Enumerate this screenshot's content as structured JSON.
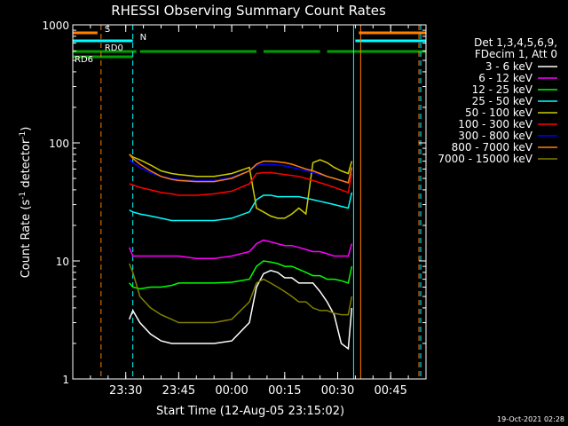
{
  "chart_data": {
    "type": "line",
    "title": "RHESSI Observing Summary Count Rates",
    "xlabel": "Start Time (12-Aug-05 23:15:02)",
    "ylabel_main": "Count Rate (s",
    "ylabel_sup1": "-1",
    "ylabel_mid": " detector",
    "ylabel_sup2": "-1",
    "ylabel_end": ")",
    "y_scale": "log",
    "ylim": [
      1,
      1000
    ],
    "xlim": [
      0,
      100
    ],
    "y_ticks": [
      {
        "label": "1",
        "v": 1
      },
      {
        "label": "10",
        "v": 10
      },
      {
        "label": "100",
        "v": 100
      },
      {
        "label": "1000",
        "v": 1000
      }
    ],
    "x_ticks": [
      {
        "label": "23:30",
        "x": 15
      },
      {
        "label": "23:45",
        "x": 30
      },
      {
        "label": "00:00",
        "x": 45
      },
      {
        "label": "00:15",
        "x": 60
      },
      {
        "label": "00:30",
        "x": 75
      },
      {
        "label": "00:45",
        "x": 90
      }
    ],
    "legend_header": [
      "Det 1,3,4,5,6,9,",
      "FDecim 1, Att 0"
    ],
    "legend_position": "right",
    "series": [
      {
        "name": "3 - 6 keV",
        "color": "#ffffff",
        "x": [
          16,
          17,
          19,
          22,
          25,
          28,
          30,
          35,
          40,
          45,
          50,
          52,
          54,
          56,
          58,
          60,
          62,
          64,
          66,
          68,
          70,
          72,
          74,
          76,
          78,
          79
        ],
        "y": [
          3.2,
          3.8,
          3.0,
          2.4,
          2.1,
          2.0,
          2.0,
          2.0,
          2.0,
          2.1,
          3.0,
          6.0,
          7.8,
          8.3,
          8.0,
          7.2,
          7.2,
          6.5,
          6.5,
          6.5,
          5.5,
          4.5,
          3.5,
          2.0,
          1.8,
          4.0
        ]
      },
      {
        "name": "6 - 12 keV",
        "color": "#ff00ff",
        "x": [
          16,
          17,
          19,
          22,
          25,
          28,
          30,
          35,
          40,
          45,
          50,
          52,
          54,
          56,
          58,
          60,
          62,
          64,
          66,
          68,
          70,
          72,
          74,
          76,
          78,
          79
        ],
        "y": [
          13,
          11,
          11,
          11,
          11,
          11,
          11,
          10.5,
          10.5,
          11,
          12,
          14,
          15,
          14.5,
          14,
          13.5,
          13.5,
          13,
          12.5,
          12,
          12,
          11.5,
          11,
          11,
          11,
          14
        ]
      },
      {
        "name": "12 - 25 keV",
        "color": "#00ff00",
        "x": [
          16,
          17,
          19,
          22,
          25,
          28,
          30,
          35,
          40,
          45,
          50,
          52,
          54,
          56,
          58,
          60,
          62,
          64,
          66,
          68,
          70,
          72,
          74,
          76,
          78,
          79
        ],
        "y": [
          6.5,
          6.0,
          5.8,
          6.0,
          6.0,
          6.2,
          6.5,
          6.5,
          6.5,
          6.6,
          7.0,
          9,
          10,
          9.8,
          9.5,
          9,
          9,
          8.5,
          8,
          7.5,
          7.5,
          7.0,
          7.0,
          6.8,
          6.5,
          9
        ]
      },
      {
        "name": "25 - 50 keV",
        "color": "#00ffff",
        "x": [
          16,
          17,
          19,
          22,
          25,
          28,
          30,
          35,
          40,
          45,
          50,
          52,
          54,
          56,
          58,
          60,
          62,
          64,
          66,
          68,
          70,
          72,
          74,
          76,
          78,
          79
        ],
        "y": [
          27,
          26,
          25,
          24,
          23,
          22,
          22,
          22,
          22,
          23,
          26,
          33,
          36,
          36,
          35,
          35,
          35,
          35,
          34,
          33,
          32,
          31,
          30,
          29,
          28,
          38
        ]
      },
      {
        "name": "50 - 100 keV",
        "color": "#cccc00",
        "x": [
          16,
          17,
          19,
          22,
          25,
          28,
          30,
          35,
          40,
          45,
          50,
          52,
          54,
          56,
          58,
          60,
          62,
          64,
          66,
          68,
          70,
          72,
          74,
          76,
          78,
          79
        ],
        "y": [
          80,
          76,
          72,
          65,
          58,
          55,
          54,
          52,
          52,
          55,
          62,
          28,
          26,
          24,
          23,
          23,
          25,
          28,
          25,
          68,
          72,
          68,
          62,
          58,
          55,
          70
        ]
      },
      {
        "name": "100 - 300 keV",
        "color": "#ff0000",
        "x": [
          16,
          17,
          19,
          22,
          25,
          28,
          30,
          35,
          40,
          45,
          50,
          52,
          54,
          56,
          58,
          60,
          62,
          64,
          66,
          68,
          70,
          72,
          74,
          76,
          78,
          79
        ],
        "y": [
          45,
          44,
          42,
          40,
          38,
          37,
          36,
          36,
          37,
          39,
          45,
          55,
          56,
          56,
          55,
          54,
          53,
          52,
          50,
          48,
          46,
          44,
          42,
          40,
          38,
          55
        ]
      },
      {
        "name": "300 - 800 keV",
        "color": "#0000ff",
        "x": [
          16,
          17,
          19,
          22,
          25,
          28,
          30,
          35,
          40,
          45,
          50,
          52,
          54,
          56,
          58,
          60,
          62,
          64,
          66,
          68,
          70,
          72,
          74,
          76,
          78,
          79
        ],
        "y": [
          72,
          68,
          62,
          56,
          52,
          50,
          49,
          48,
          48,
          51,
          58,
          64,
          66,
          66,
          65,
          64,
          62,
          60,
          58,
          56,
          54,
          52,
          50,
          48,
          46,
          60
        ]
      },
      {
        "name": "800 - 7000 keV",
        "color": "#ff8000",
        "x": [
          16,
          17,
          19,
          22,
          25,
          28,
          30,
          35,
          40,
          45,
          50,
          52,
          54,
          56,
          58,
          60,
          62,
          64,
          66,
          68,
          70,
          72,
          74,
          76,
          78,
          79
        ],
        "y": [
          80,
          74,
          66,
          58,
          52,
          49,
          48,
          47,
          47,
          50,
          58,
          66,
          70,
          70,
          69,
          68,
          66,
          63,
          60,
          58,
          55,
          52,
          50,
          48,
          46,
          62
        ]
      },
      {
        "name": "7000 - 15000 keV",
        "color": "#808000",
        "x": [
          16,
          17,
          19,
          22,
          25,
          28,
          30,
          35,
          40,
          45,
          50,
          52,
          54,
          56,
          58,
          60,
          62,
          64,
          66,
          68,
          70,
          72,
          74,
          76,
          78,
          79
        ],
        "y": [
          9.5,
          8.0,
          5.0,
          4.0,
          3.5,
          3.2,
          3.0,
          3.0,
          3.0,
          3.2,
          4.5,
          6.5,
          7.0,
          6.5,
          6.0,
          5.5,
          5.0,
          4.5,
          4.5,
          4.0,
          3.8,
          3.8,
          3.6,
          3.5,
          3.5,
          5.0
        ]
      }
    ],
    "flags": [
      {
        "label": "S",
        "color": "#ff8000",
        "y": 37,
        "segments": [
          [
            0,
            7
          ],
          [
            81,
            100
          ]
        ]
      },
      {
        "label": "N",
        "color": "#00ffff",
        "y": 46,
        "segments": [
          [
            0,
            17
          ],
          [
            80,
            100
          ]
        ]
      },
      {
        "label": "RD0",
        "color": "#00a000",
        "y": 58,
        "segments": [
          [
            0,
            18
          ],
          [
            19,
            52
          ],
          [
            54,
            70
          ],
          [
            72,
            100
          ]
        ]
      },
      {
        "label": "RD6",
        "color": "#00a000",
        "y": 64,
        "segments": [
          [
            0,
            17
          ]
        ]
      }
    ],
    "vlines": [
      {
        "x": 8,
        "color": "#ff8000",
        "style": "dashed"
      },
      {
        "x": 17,
        "color": "#00ffff",
        "style": "dashed"
      },
      {
        "x": 79.5,
        "color": "#00ffff",
        "style": "solid"
      },
      {
        "x": 81.5,
        "color": "#ff8000",
        "style": "solid"
      },
      {
        "x": 98,
        "color": "#ff8000",
        "style": "dashed"
      },
      {
        "x": 98.5,
        "color": "#00ffff",
        "style": "dashed"
      }
    ],
    "timestamp": "19-Oct-2021 02:28"
  }
}
